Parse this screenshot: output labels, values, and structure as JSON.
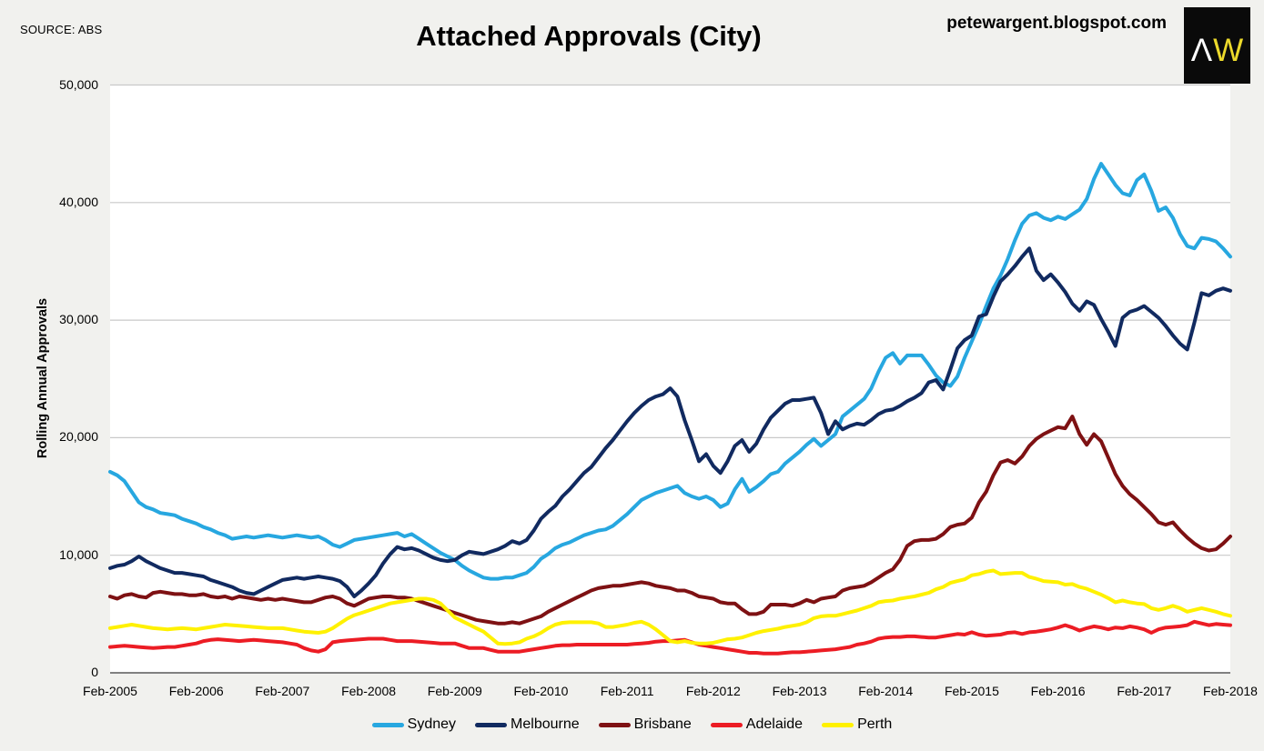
{
  "header": {
    "source": "SOURCE: ABS",
    "title": "Attached Approvals (City)",
    "blog_url": "petewargent.blogspot.com",
    "logo_letter_1": "Λ",
    "logo_letter_2": "W"
  },
  "chart_data": {
    "type": "line",
    "title": "Attached Approvals (City)",
    "xlabel": "",
    "ylabel": "Rolling Annual Approvals",
    "ylim": [
      0,
      50000
    ],
    "y_tick_labels": [
      "0",
      "10,000",
      "20,000",
      "30,000",
      "40,000",
      "50,000"
    ],
    "x_tick_labels": [
      "Feb-2005",
      "Feb-2006",
      "Feb-2007",
      "Feb-2008",
      "Feb-2009",
      "Feb-2010",
      "Feb-2011",
      "Feb-2012",
      "Feb-2013",
      "Feb-2014",
      "Feb-2015",
      "Feb-2016",
      "Feb-2017",
      "Feb-2018"
    ],
    "x_note": "monthly data, index 0 = Feb-2005 ... index 156 = Feb-2018",
    "grid": "horizontal",
    "legend_position": "bottom",
    "background_color": "#f1f1ee",
    "plot_background_color": "#ffffff",
    "gridline_color": "#c9c9c9",
    "axis_color": "#595959",
    "series": [
      {
        "name": "Sydney",
        "color": "#27a7e0",
        "values": [
          17100,
          16800,
          16300,
          15400,
          14500,
          14100,
          13900,
          13600,
          13500,
          13400,
          13100,
          12900,
          12700,
          12400,
          12200,
          11900,
          11700,
          11400,
          11500,
          11600,
          11500,
          11600,
          11700,
          11600,
          11500,
          11600,
          11700,
          11600,
          11500,
          11600,
          11300,
          10900,
          10700,
          11000,
          11300,
          11400,
          11500,
          11600,
          11700,
          11800,
          11900,
          11600,
          11800,
          11400,
          11000,
          10600,
          10200,
          9900,
          9600,
          9100,
          8700,
          8400,
          8100,
          8000,
          8000,
          8100,
          8100,
          8300,
          8500,
          9000,
          9700,
          10100,
          10600,
          10900,
          11100,
          11400,
          11700,
          11900,
          12100,
          12200,
          12500,
          13000,
          13500,
          14100,
          14700,
          15000,
          15300,
          15500,
          15700,
          15900,
          15300,
          15000,
          14800,
          15000,
          14700,
          14100,
          14400,
          15600,
          16500,
          15400,
          15800,
          16300,
          16900,
          17100,
          17800,
          18300,
          18800,
          19400,
          19900,
          19300,
          19800,
          20300,
          21800,
          22300,
          22800,
          23300,
          24200,
          25600,
          26800,
          27200,
          26300,
          27000,
          27000,
          27000,
          26200,
          25300,
          24700,
          24400,
          25200,
          26800,
          28200,
          29600,
          31200,
          32700,
          33800,
          35200,
          36800,
          38200,
          38900,
          39100,
          38700,
          38500,
          38800,
          38600,
          39000,
          39400,
          40300,
          42000,
          43300,
          42400,
          41500,
          40800,
          40600,
          41900,
          42400,
          41000,
          39300,
          39600,
          38700,
          37300,
          36300,
          36100,
          37000,
          36900,
          36700,
          36100,
          35400
        ]
      },
      {
        "name": "Melbourne",
        "color": "#112a60",
        "values": [
          8900,
          9100,
          9200,
          9500,
          9900,
          9500,
          9200,
          8900,
          8700,
          8500,
          8500,
          8400,
          8300,
          8200,
          7900,
          7700,
          7500,
          7300,
          7000,
          6800,
          6700,
          7000,
          7300,
          7600,
          7900,
          8000,
          8100,
          8000,
          8100,
          8200,
          8100,
          8000,
          7800,
          7300,
          6500,
          7000,
          7600,
          8300,
          9300,
          10100,
          10700,
          10500,
          10600,
          10400,
          10100,
          9800,
          9600,
          9500,
          9600,
          10000,
          10300,
          10200,
          10100,
          10300,
          10500,
          10800,
          11200,
          11000,
          11300,
          12100,
          13100,
          13700,
          14200,
          15000,
          15600,
          16300,
          17000,
          17500,
          18300,
          19100,
          19800,
          20600,
          21400,
          22100,
          22700,
          23200,
          23500,
          23700,
          24200,
          23500,
          21500,
          19800,
          18000,
          18600,
          17600,
          17000,
          18000,
          19300,
          19800,
          18800,
          19500,
          20700,
          21700,
          22300,
          22900,
          23200,
          23200,
          23300,
          23400,
          22100,
          20300,
          21400,
          20700,
          21000,
          21200,
          21100,
          21500,
          22000,
          22300,
          22400,
          22700,
          23100,
          23400,
          23800,
          24700,
          24900,
          24100,
          25800,
          27600,
          28300,
          28700,
          30300,
          30500,
          32000,
          33300,
          33900,
          34600,
          35400,
          36100,
          34200,
          33400,
          33900,
          33200,
          32400,
          31400,
          30800,
          31600,
          31300,
          30100,
          29000,
          27800,
          30200,
          30700,
          30900,
          31200,
          30700,
          30200,
          29500,
          28700,
          28000,
          27500,
          29800,
          32300,
          32100,
          32500,
          32700,
          32500
        ]
      },
      {
        "name": "Brisbane",
        "color": "#7e1113",
        "values": [
          6500,
          6300,
          6600,
          6700,
          6500,
          6400,
          6800,
          6900,
          6800,
          6700,
          6700,
          6600,
          6600,
          6700,
          6500,
          6400,
          6500,
          6300,
          6500,
          6400,
          6300,
          6200,
          6300,
          6200,
          6300,
          6200,
          6100,
          6000,
          6000,
          6200,
          6400,
          6500,
          6300,
          5900,
          5700,
          6000,
          6300,
          6400,
          6500,
          6500,
          6400,
          6400,
          6300,
          6100,
          5900,
          5700,
          5500,
          5300,
          5100,
          4900,
          4700,
          4500,
          4400,
          4300,
          4200,
          4200,
          4300,
          4200,
          4400,
          4600,
          4800,
          5200,
          5500,
          5800,
          6100,
          6400,
          6700,
          7000,
          7200,
          7300,
          7400,
          7400,
          7500,
          7600,
          7700,
          7600,
          7400,
          7300,
          7200,
          7000,
          7000,
          6800,
          6500,
          6400,
          6300,
          6000,
          5900,
          5900,
          5400,
          5000,
          5000,
          5200,
          5800,
          5800,
          5800,
          5700,
          5900,
          6200,
          6000,
          6300,
          6400,
          6500,
          7000,
          7200,
          7300,
          7400,
          7700,
          8100,
          8500,
          8800,
          9600,
          10800,
          11200,
          11300,
          11300,
          11400,
          11800,
          12400,
          12600,
          12700,
          13200,
          14500,
          15400,
          16800,
          17900,
          18100,
          17800,
          18400,
          19300,
          19900,
          20300,
          20600,
          20900,
          20800,
          21800,
          20300,
          19400,
          20300,
          19700,
          18300,
          16900,
          15900,
          15200,
          14700,
          14100,
          13500,
          12800,
          12600,
          12800,
          12100,
          11500,
          11000,
          10600,
          10400,
          10500,
          11000,
          11600
        ]
      },
      {
        "name": "Adelaide",
        "color": "#ec1c24",
        "values": [
          2200,
          2250,
          2300,
          2250,
          2200,
          2150,
          2100,
          2150,
          2200,
          2200,
          2300,
          2400,
          2500,
          2700,
          2800,
          2850,
          2800,
          2750,
          2700,
          2750,
          2800,
          2750,
          2700,
          2650,
          2600,
          2500,
          2400,
          2100,
          1900,
          1800,
          2000,
          2600,
          2700,
          2750,
          2800,
          2850,
          2900,
          2900,
          2900,
          2800,
          2700,
          2700,
          2700,
          2650,
          2600,
          2550,
          2500,
          2500,
          2500,
          2300,
          2100,
          2100,
          2100,
          1950,
          1800,
          1800,
          1800,
          1800,
          1900,
          2000,
          2100,
          2200,
          2300,
          2350,
          2350,
          2400,
          2400,
          2400,
          2400,
          2400,
          2400,
          2400,
          2400,
          2450,
          2500,
          2550,
          2650,
          2700,
          2700,
          2750,
          2800,
          2600,
          2400,
          2300,
          2200,
          2100,
          2000,
          1900,
          1800,
          1700,
          1700,
          1650,
          1650,
          1650,
          1700,
          1750,
          1750,
          1800,
          1850,
          1900,
          1950,
          2000,
          2100,
          2200,
          2400,
          2500,
          2650,
          2900,
          3000,
          3050,
          3050,
          3100,
          3100,
          3050,
          3000,
          3000,
          3100,
          3200,
          3300,
          3250,
          3450,
          3250,
          3150,
          3200,
          3250,
          3400,
          3450,
          3300,
          3450,
          3500,
          3600,
          3700,
          3850,
          4050,
          3850,
          3600,
          3800,
          3950,
          3850,
          3700,
          3850,
          3800,
          3950,
          3850,
          3700,
          3400,
          3700,
          3850,
          3900,
          3950,
          4050,
          4350,
          4200,
          4050,
          4150,
          4100,
          4050
        ]
      },
      {
        "name": "Perth",
        "color": "#fff100",
        "values": [
          3800,
          3900,
          4000,
          4100,
          4000,
          3900,
          3800,
          3750,
          3700,
          3750,
          3800,
          3750,
          3700,
          3800,
          3900,
          4000,
          4100,
          4050,
          4000,
          3950,
          3900,
          3850,
          3800,
          3800,
          3800,
          3700,
          3600,
          3500,
          3450,
          3400,
          3500,
          3800,
          4200,
          4600,
          4900,
          5100,
          5300,
          5500,
          5700,
          5900,
          6000,
          6100,
          6200,
          6300,
          6300,
          6200,
          5900,
          5300,
          4700,
          4400,
          4100,
          3800,
          3500,
          3000,
          2500,
          2450,
          2500,
          2600,
          2900,
          3100,
          3400,
          3800,
          4100,
          4250,
          4300,
          4300,
          4300,
          4300,
          4200,
          3900,
          3900,
          4000,
          4100,
          4250,
          4350,
          4100,
          3700,
          3200,
          2700,
          2600,
          2700,
          2550,
          2500,
          2500,
          2550,
          2700,
          2850,
          2900,
          3000,
          3200,
          3400,
          3550,
          3650,
          3750,
          3900,
          4000,
          4100,
          4300,
          4650,
          4800,
          4850,
          4850,
          5000,
          5150,
          5300,
          5500,
          5700,
          6000,
          6100,
          6150,
          6300,
          6400,
          6500,
          6650,
          6800,
          7100,
          7300,
          7650,
          7800,
          7950,
          8300,
          8400,
          8600,
          8700,
          8400,
          8450,
          8500,
          8500,
          8150,
          8000,
          7800,
          7750,
          7700,
          7500,
          7550,
          7300,
          7150,
          6900,
          6650,
          6350,
          6000,
          6150,
          6000,
          5900,
          5850,
          5500,
          5350,
          5500,
          5700,
          5500,
          5200,
          5350,
          5500,
          5350,
          5200,
          5000,
          4850
        ]
      }
    ]
  }
}
